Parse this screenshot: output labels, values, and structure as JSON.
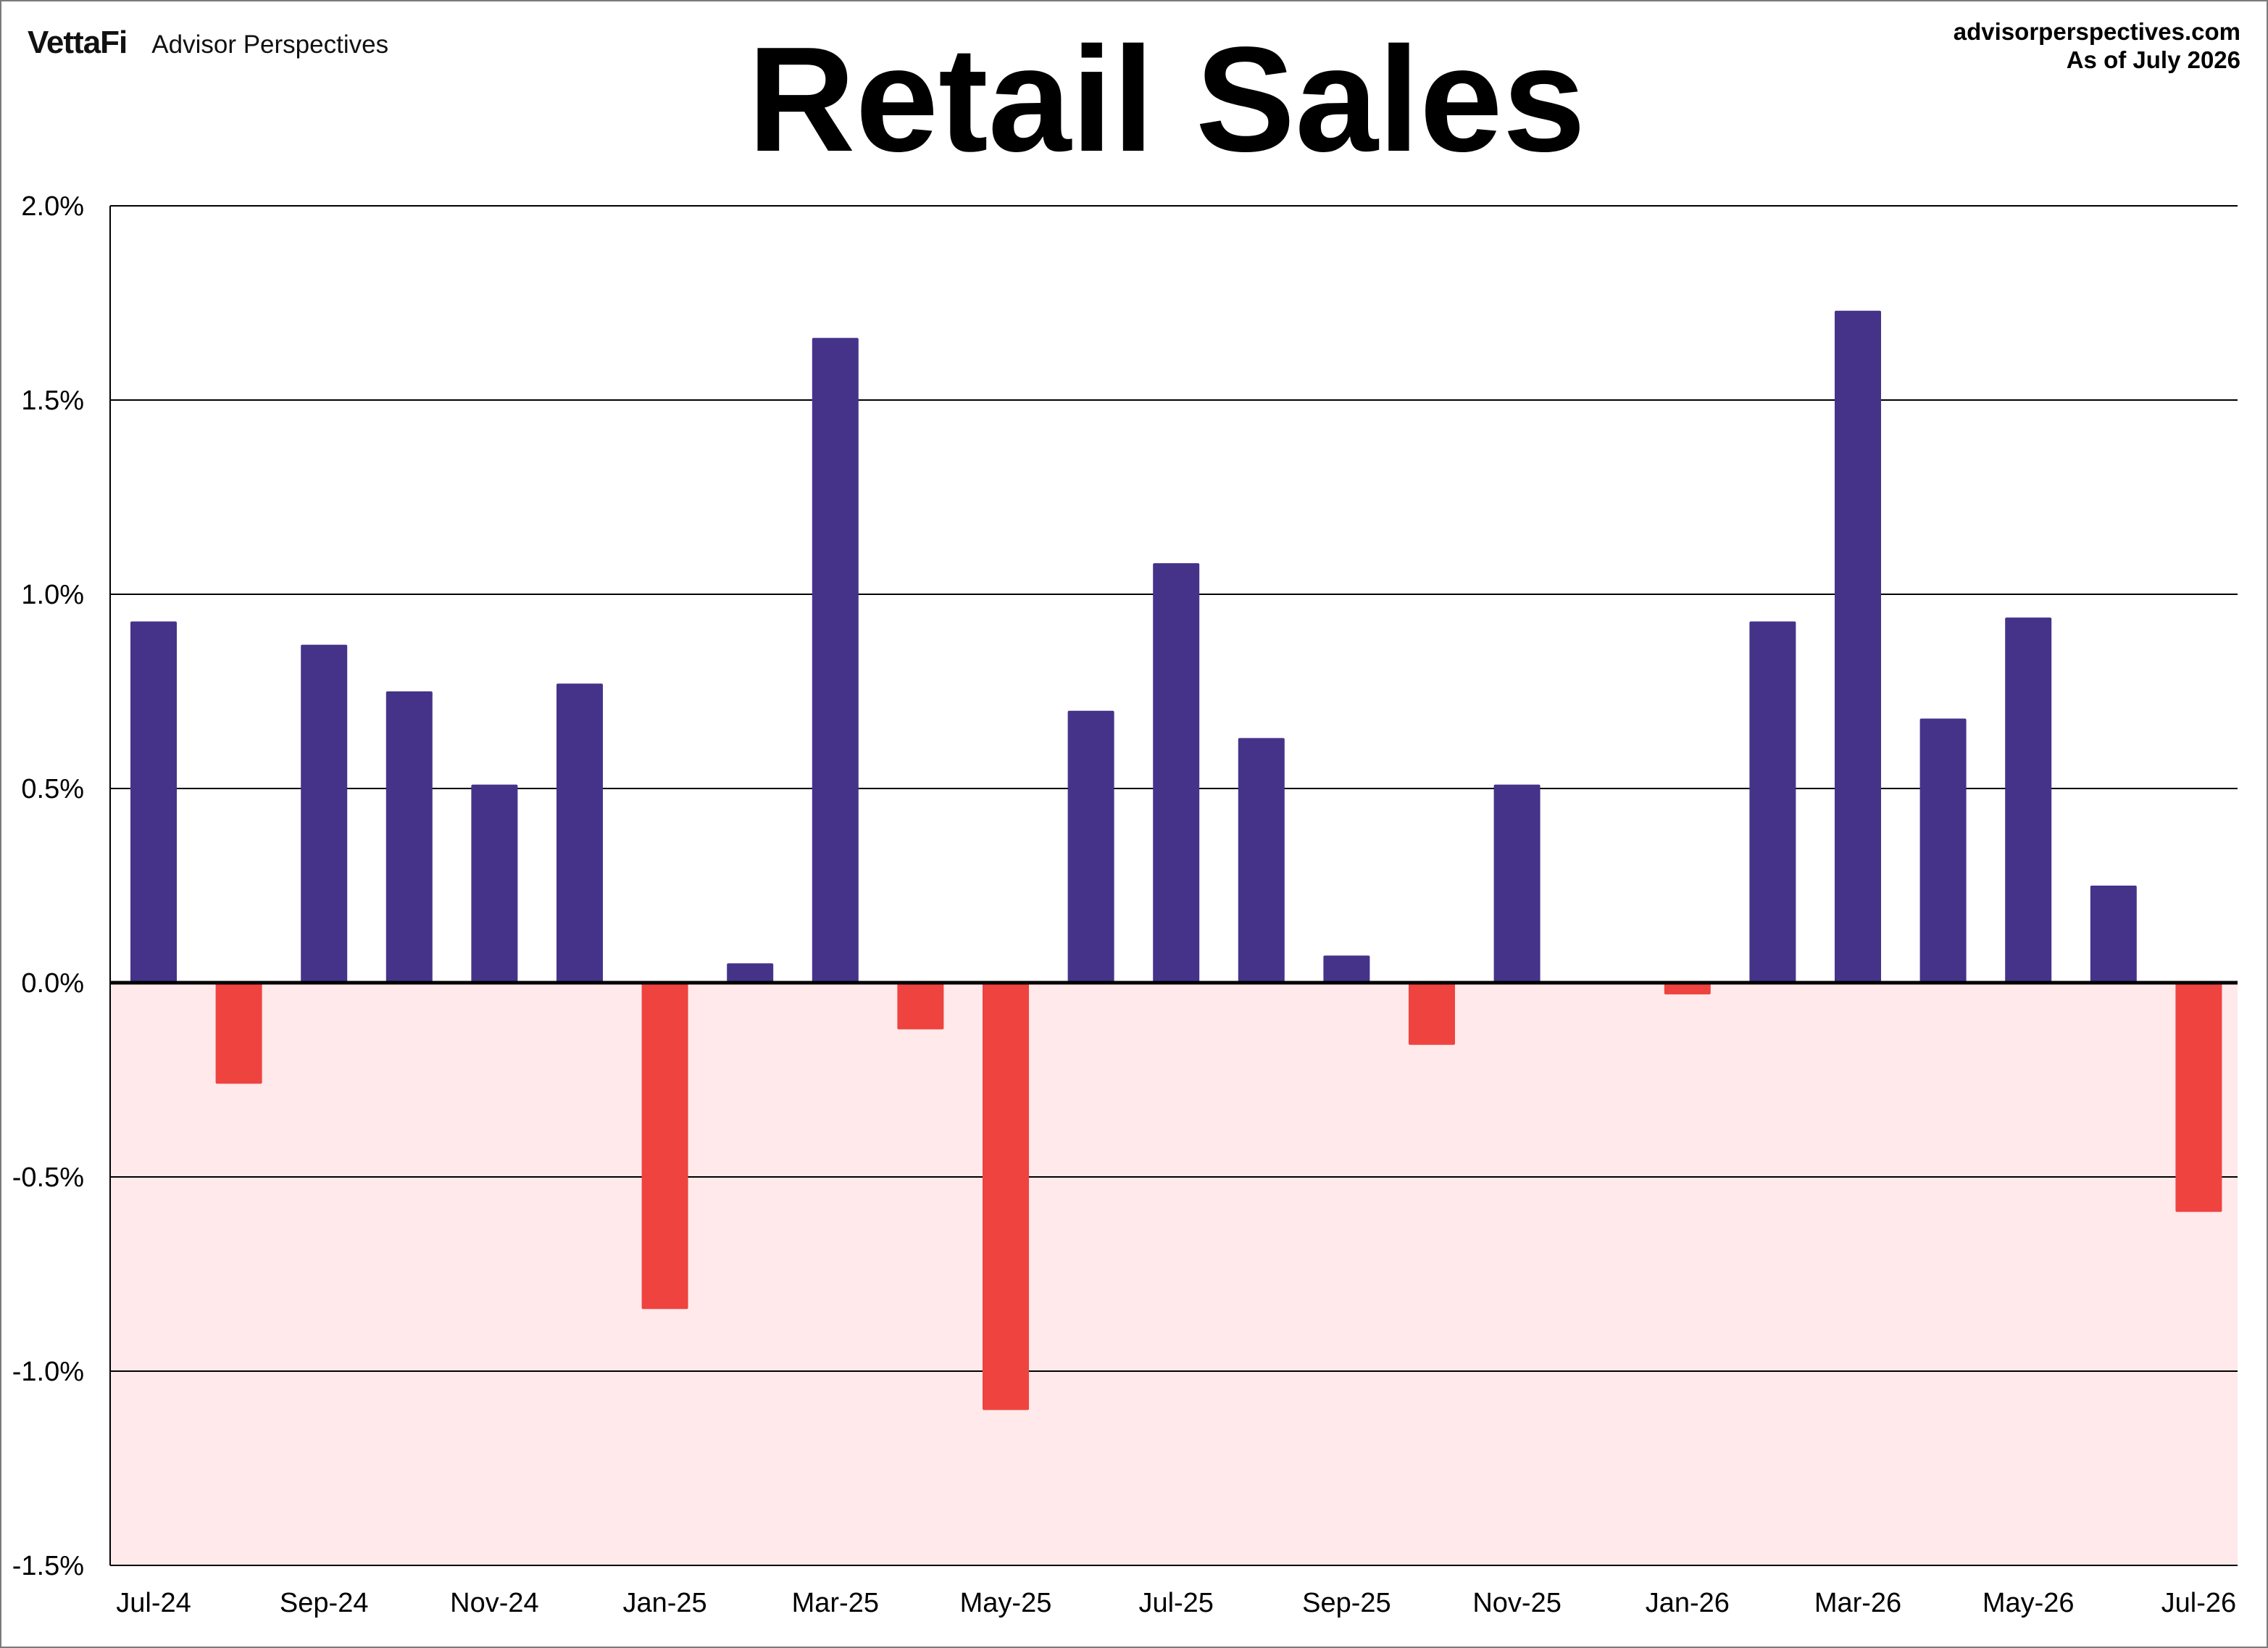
{
  "header": {
    "brand_logo": "VettaFi",
    "brand_name": "Advisor Perspectives",
    "source_url": "advisorperspectives.com",
    "as_of": "As of July 2026"
  },
  "colors": {
    "positive": "#45338a",
    "negative": "#ef4340",
    "negative_region": "#ffe9ea",
    "grid": "#000000"
  },
  "chart_data": {
    "type": "bar",
    "title": "Retail Sales",
    "xlabel": "",
    "ylabel": "",
    "ylim": [
      -1.5,
      2.0
    ],
    "yticks": [
      2.0,
      1.5,
      1.0,
      0.5,
      0.0,
      -0.5,
      -1.0,
      -1.5
    ],
    "ytick_labels": [
      "2.0%",
      "1.5%",
      "1.0%",
      "0.5%",
      "0.0%",
      "-0.5%",
      "-1.0%",
      "-1.5%"
    ],
    "grid": true,
    "legend": "none",
    "categories": [
      "Jul-24",
      "Aug-24",
      "Sep-24",
      "Oct-24",
      "Nov-24",
      "Dec-24",
      "Jan-25",
      "Feb-25",
      "Mar-25",
      "Apr-25",
      "May-25",
      "Jun-25",
      "Jul-25",
      "Aug-25",
      "Sep-25",
      "Oct-25",
      "Nov-25",
      "Dec-25",
      "Jan-26",
      "Feb-26",
      "Mar-26",
      "Apr-26",
      "May-26",
      "Jun-26",
      "Jul-26"
    ],
    "xtick_labels": [
      "Jul-24",
      "Sep-24",
      "Nov-24",
      "Jan-25",
      "Mar-25",
      "May-25",
      "Jul-25",
      "Sep-25",
      "Nov-25",
      "Jan-26",
      "Mar-26",
      "May-26",
      "Jul-26"
    ],
    "values": [
      0.93,
      -0.26,
      0.87,
      0.75,
      0.51,
      0.77,
      -0.84,
      0.05,
      1.66,
      -0.12,
      -1.1,
      0.7,
      1.08,
      0.63,
      0.07,
      -0.16,
      0.51,
      0.0,
      -0.03,
      0.93,
      1.73,
      0.68,
      0.94,
      0.25,
      -0.59
    ]
  }
}
